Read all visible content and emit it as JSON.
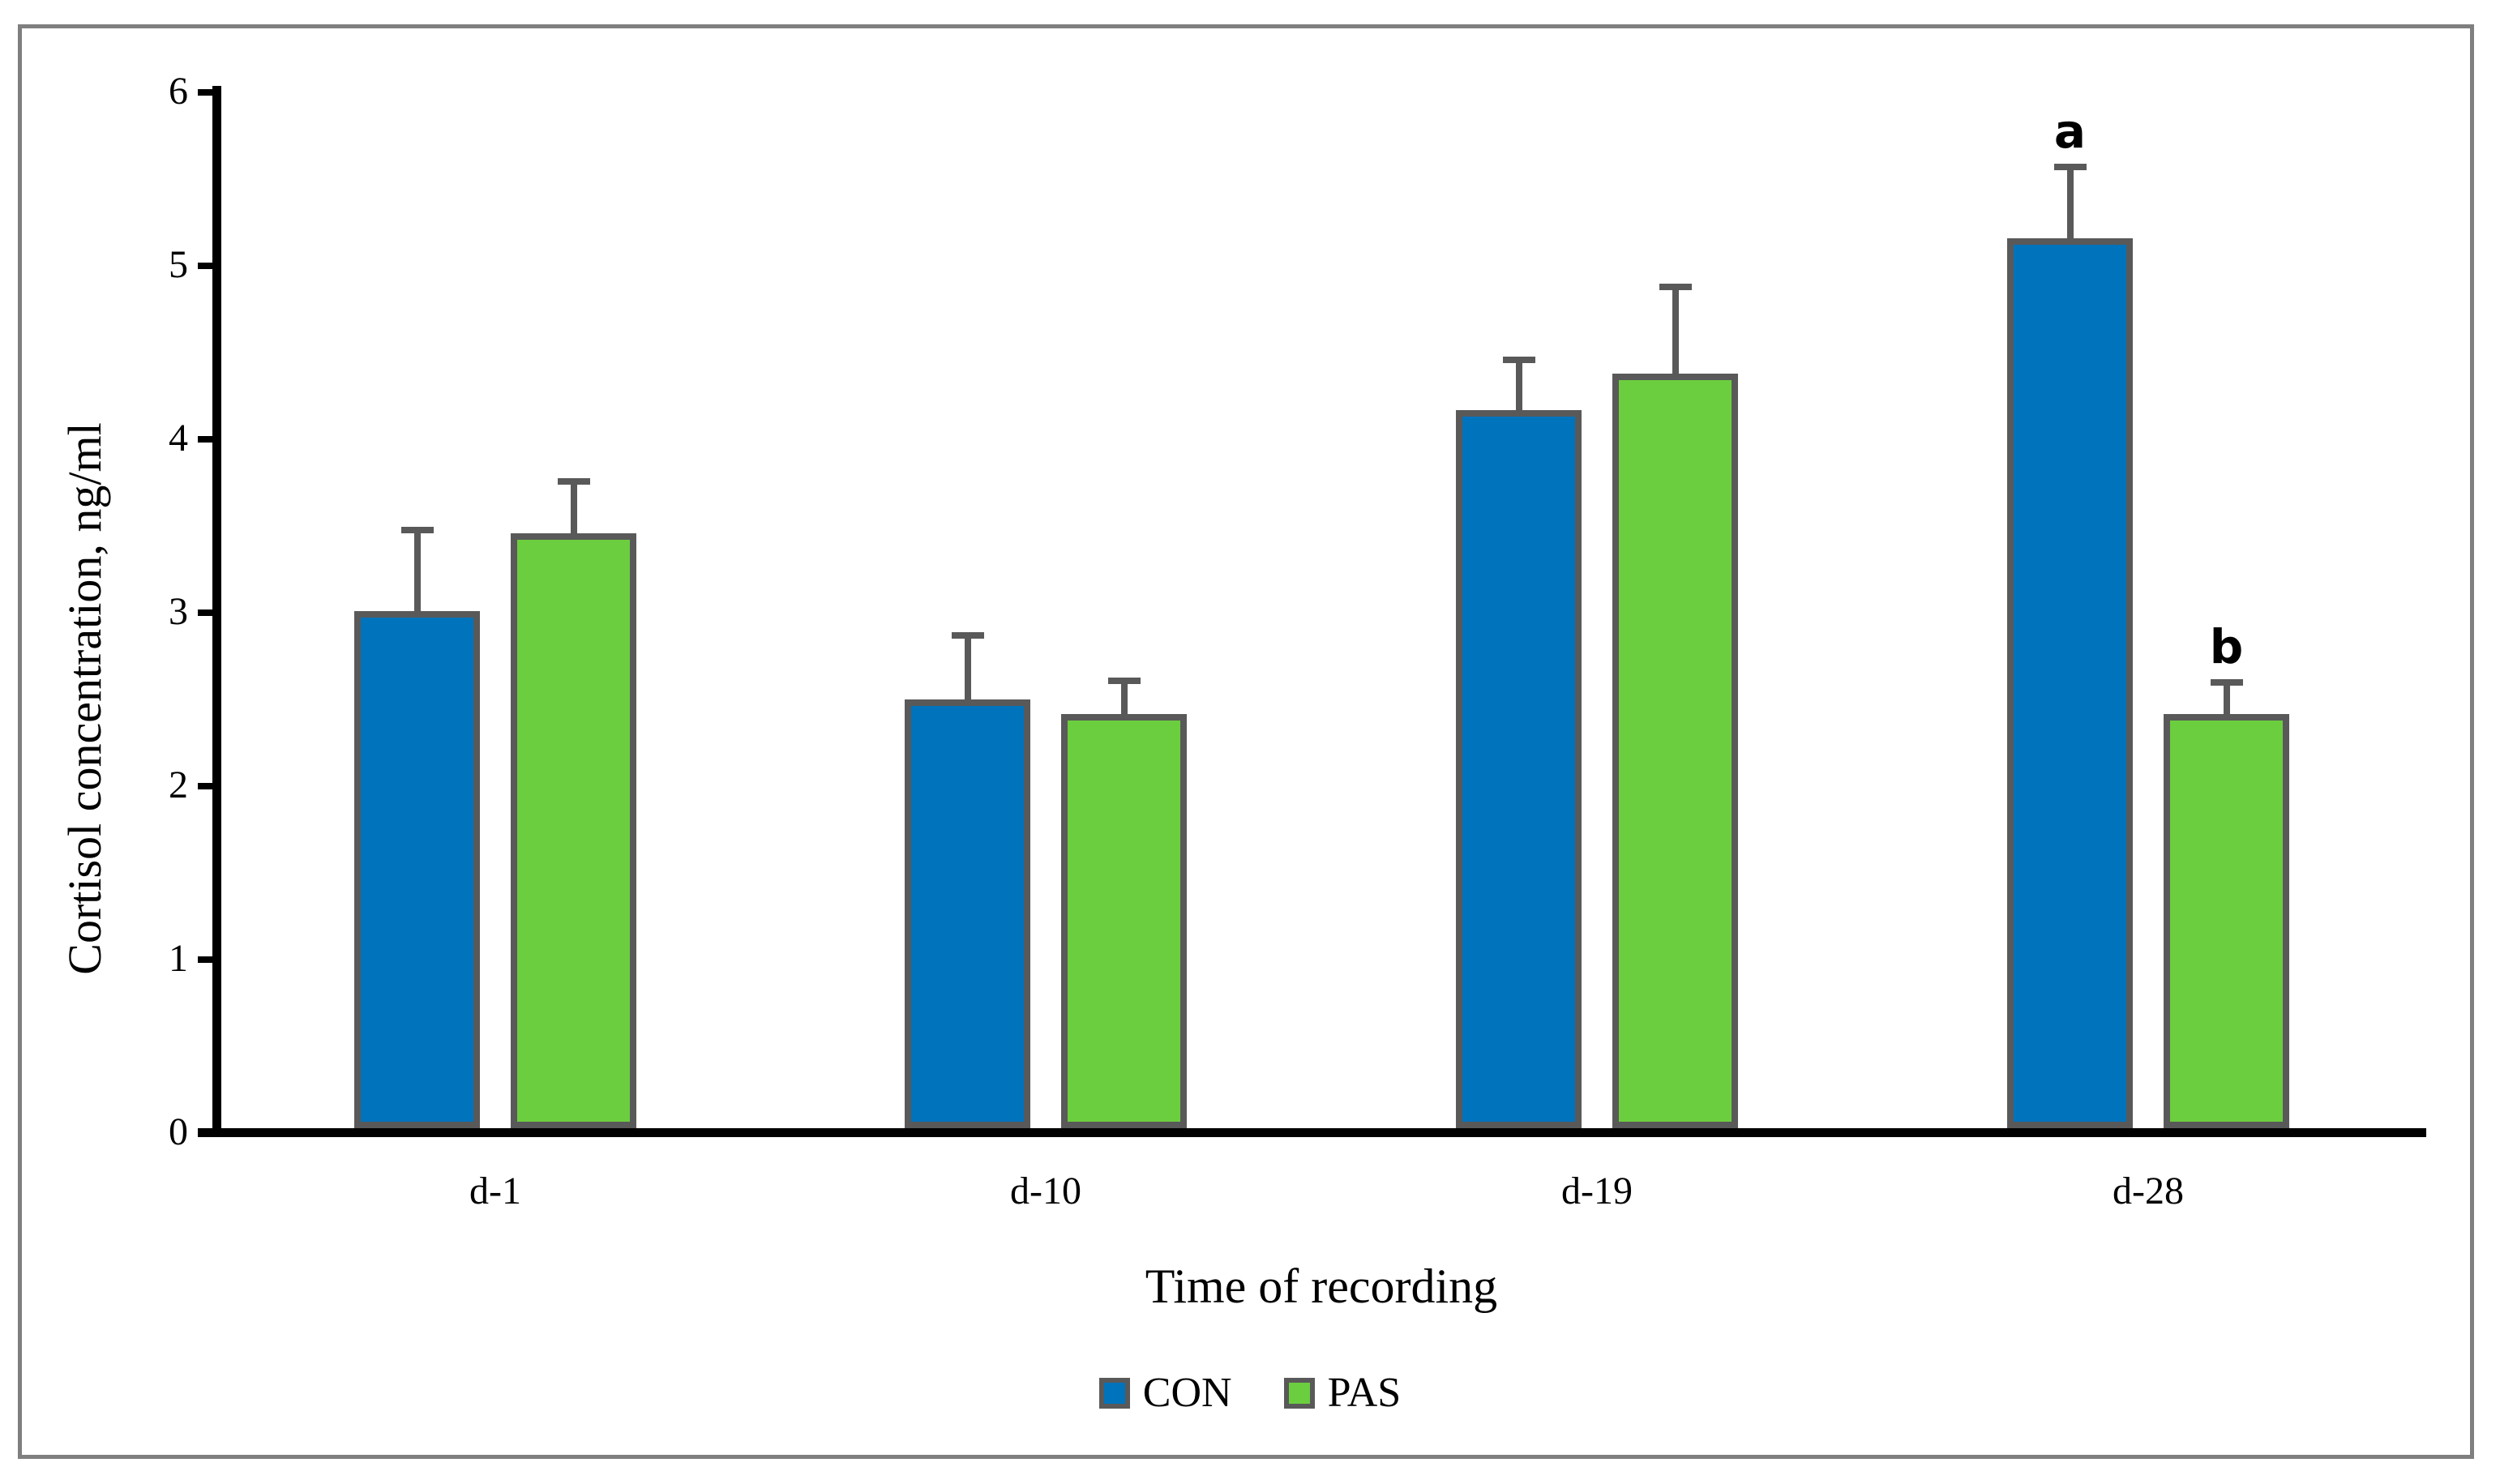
{
  "figure": {
    "background_color": "#ffffff",
    "frame_color": "#7f7f7f",
    "axis_color": "#000000",
    "error_bar_color": "#595959",
    "bar_border_color": "#595959"
  },
  "chart_data": {
    "type": "bar",
    "title": "",
    "categories": [
      "d-1",
      "d-10",
      "d-19",
      "d-28"
    ],
    "series": [
      {
        "name": "CON",
        "color": "#0073BD",
        "values": [
          2.98,
          2.47,
          4.14,
          5.13
        ],
        "errors_plus": [
          0.47,
          0.37,
          0.29,
          0.41
        ]
      },
      {
        "name": "PAS",
        "color": "#6BCE3E",
        "values": [
          3.43,
          2.39,
          4.35,
          2.39
        ],
        "errors_plus": [
          0.3,
          0.19,
          0.5,
          0.18
        ]
      }
    ],
    "annotations": [
      {
        "text": "a",
        "category": "d-28",
        "series": "CON"
      },
      {
        "text": "b",
        "category": "d-28",
        "series": "PAS"
      }
    ],
    "xlabel": "Time of recording",
    "ylabel": "Cortisol concentration, ng/ml",
    "ylim": [
      0,
      6
    ],
    "yticks": [
      0,
      1,
      2,
      3,
      4,
      5,
      6
    ],
    "grid": false,
    "legend_position": "bottom-center",
    "error_bars": "upper-only"
  }
}
